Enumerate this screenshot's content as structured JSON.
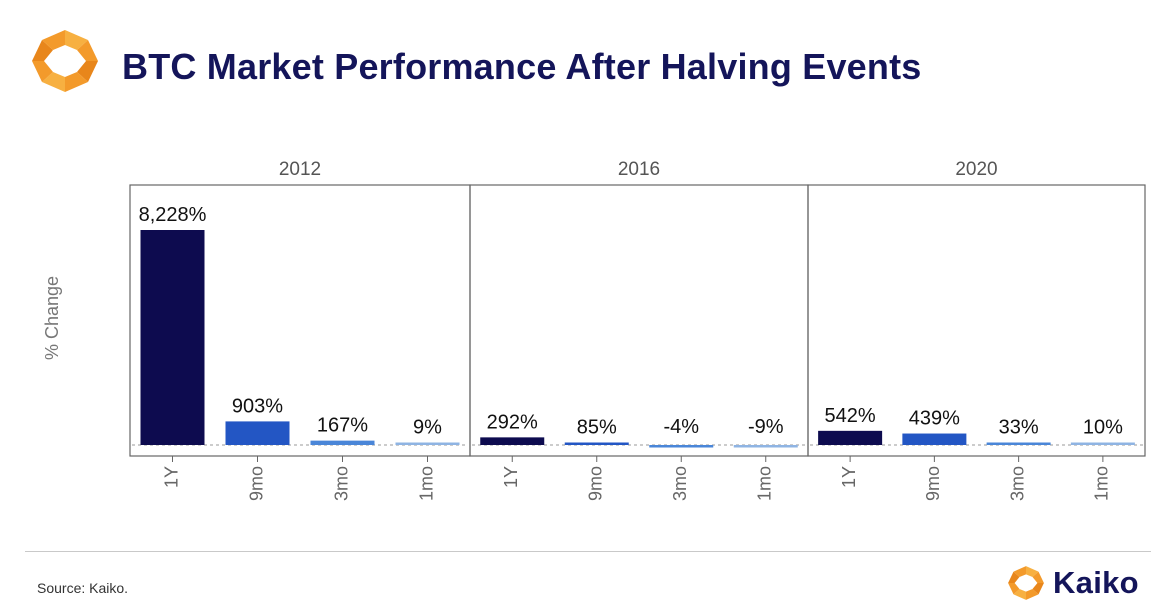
{
  "header": {
    "title": "BTC Market Performance After Halving Events",
    "logo_icon": "kaiko-logo-icon"
  },
  "footer": {
    "source": "Source: Kaiko.",
    "brand_name": "Kaiko",
    "brand_icon": "kaiko-logo-icon"
  },
  "colors": {
    "title": "#14155a",
    "logo_orange": "#f39a2b",
    "logo_orange_dark": "#e27a14",
    "bar_1Y": "#0d0b4f",
    "bar_9mo": "#2356c4",
    "bar_3mo": "#4a86d8",
    "bar_1mo": "#8fb4e3",
    "panel_border": "#666666",
    "zero_line": "#9a9a9a"
  },
  "chart_data": {
    "type": "bar",
    "layout": "faceted",
    "ylabel": "% Change",
    "categories": [
      "1Y",
      "9mo",
      "3mo",
      "1mo"
    ],
    "facets": [
      {
        "name": "2012",
        "values": [
          8228,
          903,
          167,
          9
        ],
        "labels": [
          "8,228%",
          "903%",
          "167%",
          "9%"
        ]
      },
      {
        "name": "2016",
        "values": [
          292,
          85,
          -4,
          -9
        ],
        "labels": [
          "292%",
          "85%",
          "-4%",
          "-9%"
        ]
      },
      {
        "name": "2020",
        "values": [
          542,
          439,
          33,
          10
        ],
        "labels": [
          "542%",
          "439%",
          "33%",
          "10%"
        ]
      }
    ],
    "ylim": [
      -60,
      8228
    ],
    "y_ticks_shown": false,
    "zero_line": "dashed",
    "grid": false,
    "legend": "none"
  }
}
